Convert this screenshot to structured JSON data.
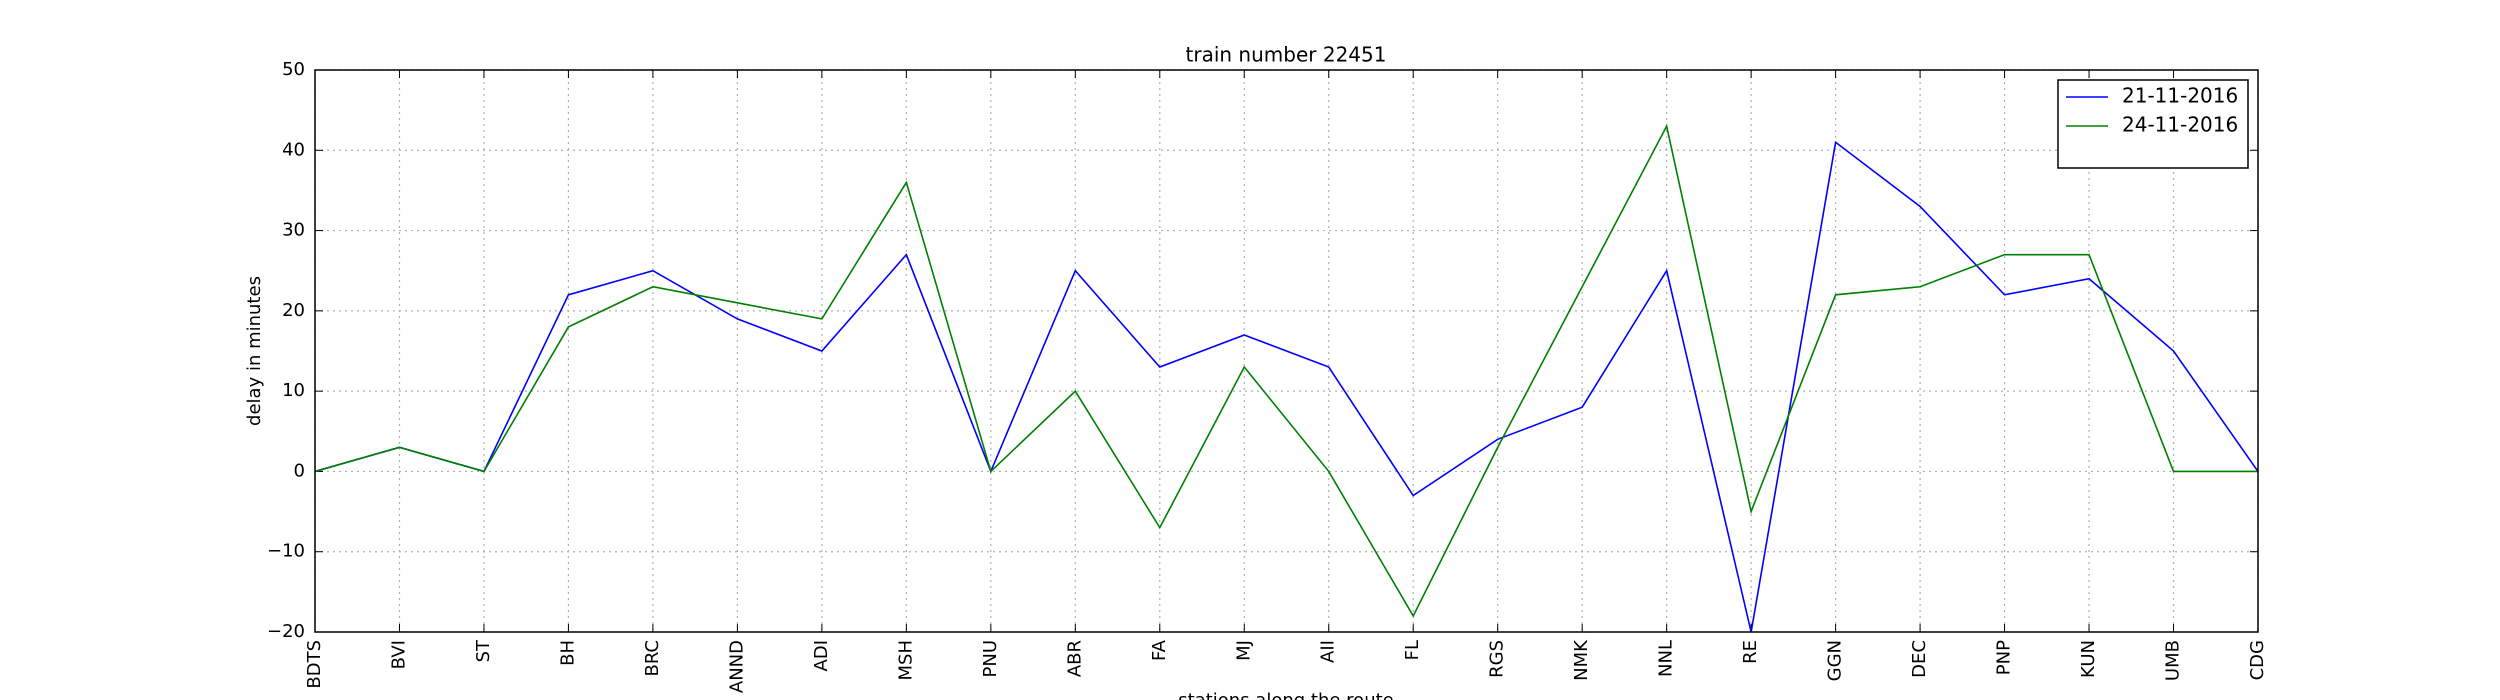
{
  "chart_data": {
    "type": "line",
    "title": "train number 22451",
    "x_label": "stations along the route",
    "y_label": "delay in minutes",
    "categories": [
      "BDTS",
      "BVI",
      "ST",
      "BH",
      "BRC",
      "ANND",
      "ADI",
      "MSH",
      "PNU",
      "ABR",
      "FA",
      "MJ",
      "AII",
      "FL",
      "RGS",
      "NMK",
      "NNL",
      "RE",
      "GGN",
      "DEC",
      "PNP",
      "KUN",
      "UMB",
      "CDG"
    ],
    "series": [
      {
        "name": "21-11-2016",
        "color": "#0000ff",
        "values": [
          0,
          3,
          0,
          22,
          25,
          19,
          15,
          27,
          0,
          25,
          13,
          17,
          13,
          -3,
          4,
          8,
          25,
          -20,
          41,
          33,
          22,
          24,
          15,
          0
        ]
      },
      {
        "name": "24-11-2016",
        "color": "#008000",
        "values": [
          0,
          3,
          0,
          18,
          23,
          21,
          19,
          36,
          0,
          10,
          -7,
          13,
          0,
          -18,
          3,
          23,
          43,
          -5,
          22,
          23,
          27,
          27,
          0,
          0
        ]
      }
    ],
    "ylim": [
      -20,
      50
    ],
    "yticks": [
      {
        "value": -20,
        "label": "−20"
      },
      {
        "value": -10,
        "label": "−10"
      },
      0,
      10,
      20,
      30,
      40,
      50
    ],
    "grid": true,
    "legend": "upper right"
  }
}
